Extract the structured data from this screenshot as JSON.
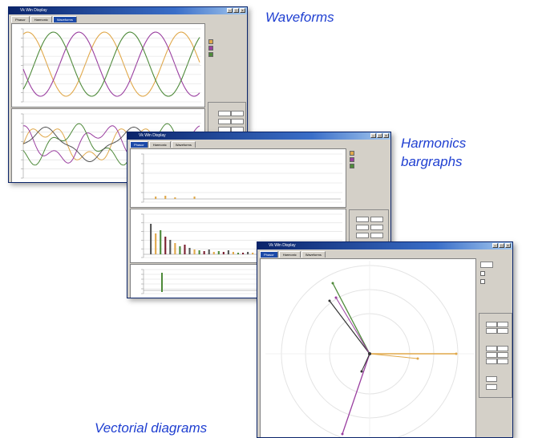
{
  "captions": {
    "waveforms": "Waveforms",
    "harmonics_line1": "Harmonics",
    "harmonics_line2": "bargraphs",
    "vectorial": "Vectorial diagrams"
  },
  "colors": {
    "caption": "#1f3fd1",
    "titlebar": "#0a246a",
    "phase1": "#e0a84a",
    "phase2": "#9a3fa0",
    "phase3": "#4e8a3a",
    "neutral": "#555555"
  },
  "windows": {
    "waveforms": {
      "title": "Vk Win Display",
      "tabs": [
        "Phasor",
        "Harmonic",
        "Waveforms"
      ],
      "active_tab": 2
    },
    "harmonics": {
      "title": "Vk Win Display",
      "tabs": [
        "Phasor",
        "Harmonic",
        "Waveforms"
      ],
      "active_tab": 0
    },
    "vectorial": {
      "title": "Vk Win Display",
      "tabs": [
        "Phasor",
        "Harmonic",
        "Waveforms"
      ],
      "active_tab": 0
    }
  },
  "icons": {
    "minimize": "minimize-icon",
    "maximize": "maximize-icon",
    "close": "close-icon"
  }
}
